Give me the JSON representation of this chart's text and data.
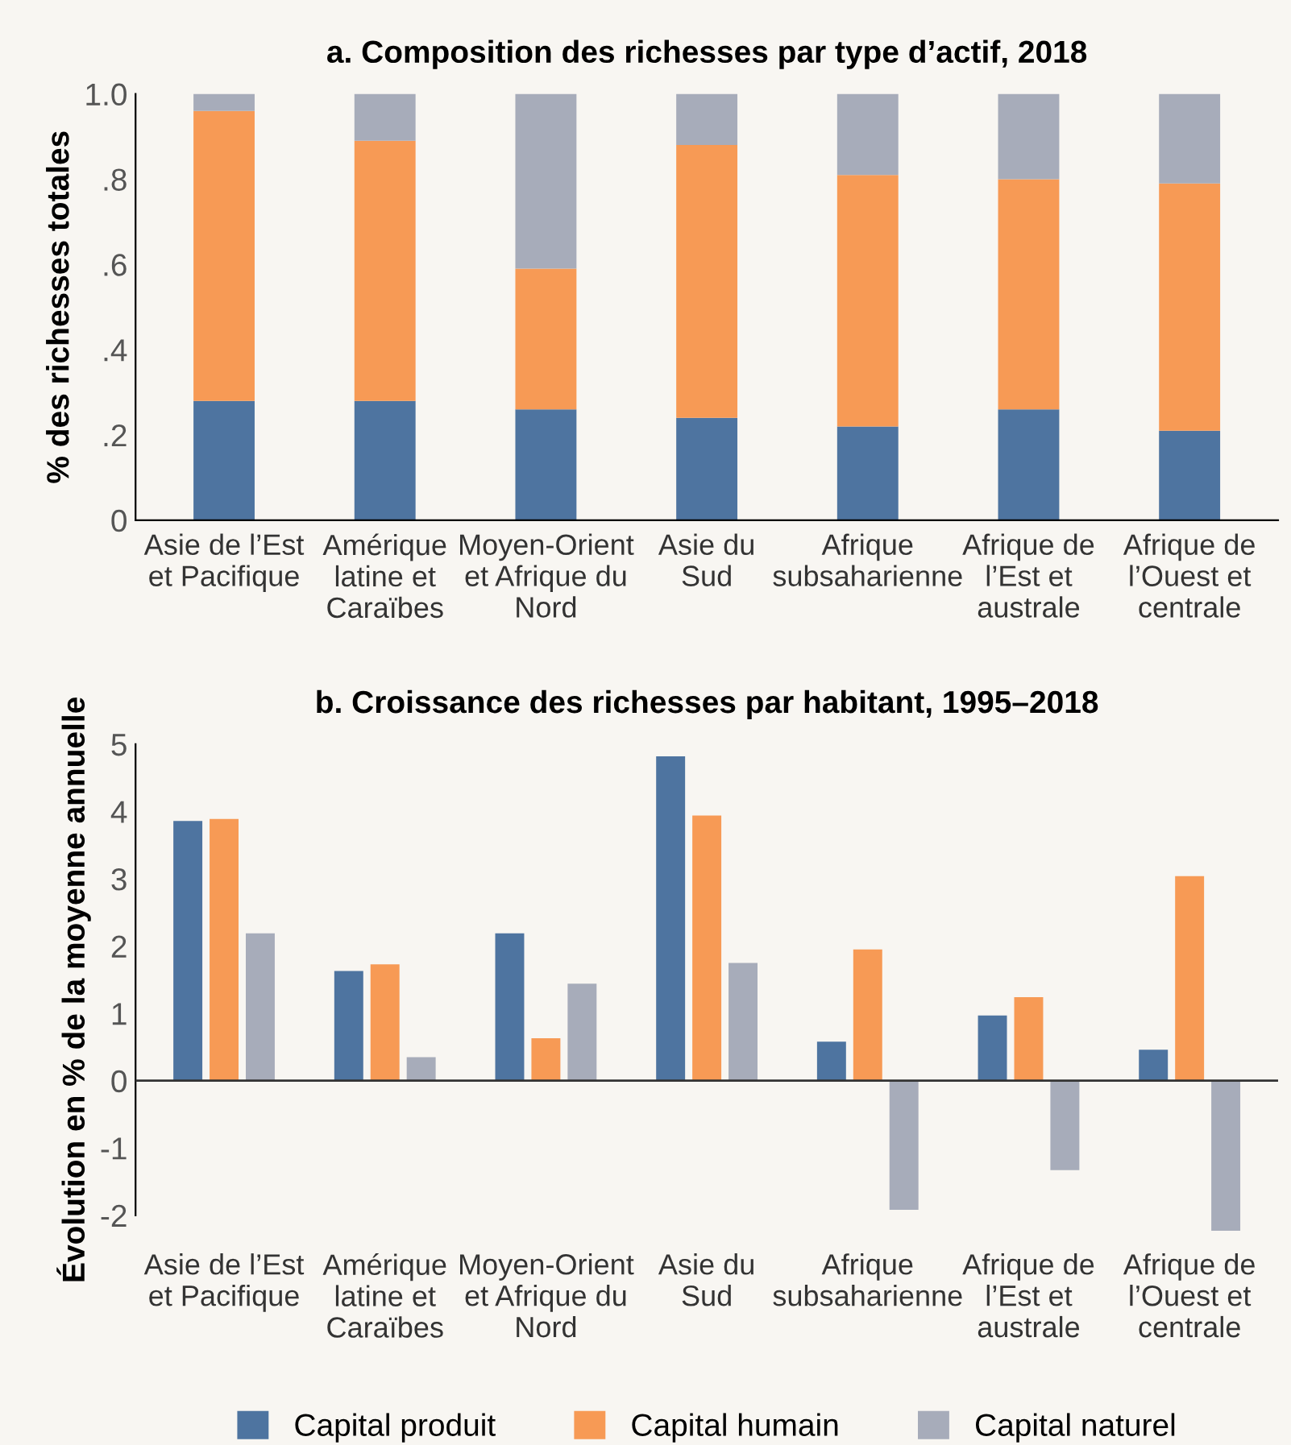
{
  "chart_data": [
    {
      "type": "bar",
      "stacked": true,
      "title": "a. Composition des richesses par type d’actif, 2018",
      "ylabel": "% des richesses totales",
      "categories": [
        "Asie de l’Est\net Pacifique",
        "Amérique\nlatine et\nCaraïbes",
        "Moyen-Orient\net Afrique du\nNord",
        "Asie du\nSud",
        "Afrique\nsubsaharienne",
        "Afrique de\nl’Est et\naustrale",
        "Afrique de\nl’Ouest et\ncentrale"
      ],
      "series": [
        {
          "color": "#4e74a0",
          "values": [
            0.28,
            0.28,
            0.26,
            0.24,
            0.22,
            0.26,
            0.21
          ]
        },
        {
          "color": "#f79a55",
          "values": [
            0.68,
            0.61,
            0.33,
            0.64,
            0.59,
            0.54,
            0.58
          ]
        },
        {
          "color": "#a7acba",
          "values": [
            0.04,
            0.11,
            0.41,
            0.12,
            0.19,
            0.2,
            0.21
          ]
        }
      ],
      "ylim": [
        0,
        1.0
      ],
      "yticks": [
        0,
        {
          "value": 0.2,
          "label": ".2"
        },
        {
          "value": 0.4,
          "label": ".4"
        },
        {
          "value": 0.6,
          "label": ".6"
        },
        {
          "value": 0.8,
          "label": ".8"
        },
        {
          "value": 1.0,
          "label": "1.0"
        }
      ],
      "grid": false,
      "legend": false
    },
    {
      "type": "bar",
      "title": "b. Croissance des richesses par habitant, 1995–2018",
      "ylabel": "Évolution en % de la moyenne annuelle",
      "categories": [
        "Asie de l’Est\net Pacifique",
        "Amérique\nlatine et\nCaraïbes",
        "Moyen-Orient\net Afrique du\nNord",
        "Asie du\nSud",
        "Afrique\nsubsaharienne",
        "Afrique de\nl’Est et\naustrale",
        "Afrique de\nl’Ouest et\ncentrale"
      ],
      "series": [
        {
          "name": "Capital produit",
          "color": "#4e74a0",
          "values": [
            3.86,
            1.63,
            2.19,
            4.82,
            0.58,
            0.97,
            0.46
          ]
        },
        {
          "name": "Capital humain",
          "color": "#f79a55",
          "values": [
            3.89,
            1.73,
            0.63,
            3.94,
            1.95,
            1.24,
            3.04
          ]
        },
        {
          "name": "Capital naturel",
          "color": "#a7acba",
          "values": [
            2.19,
            0.35,
            1.44,
            1.75,
            -1.92,
            -1.33,
            -2.23
          ]
        }
      ],
      "ref_lines": [
        {
          "axis": "y",
          "value": 0,
          "color": "#333333"
        }
      ],
      "ylim": [
        -2.3,
        5
      ],
      "yticks": [
        {
          "value": -2,
          "label": "-2"
        },
        {
          "value": -1,
          "label": "-1"
        },
        0,
        1,
        2,
        3,
        4,
        5
      ],
      "grid": false,
      "legend": "bottom"
    }
  ]
}
